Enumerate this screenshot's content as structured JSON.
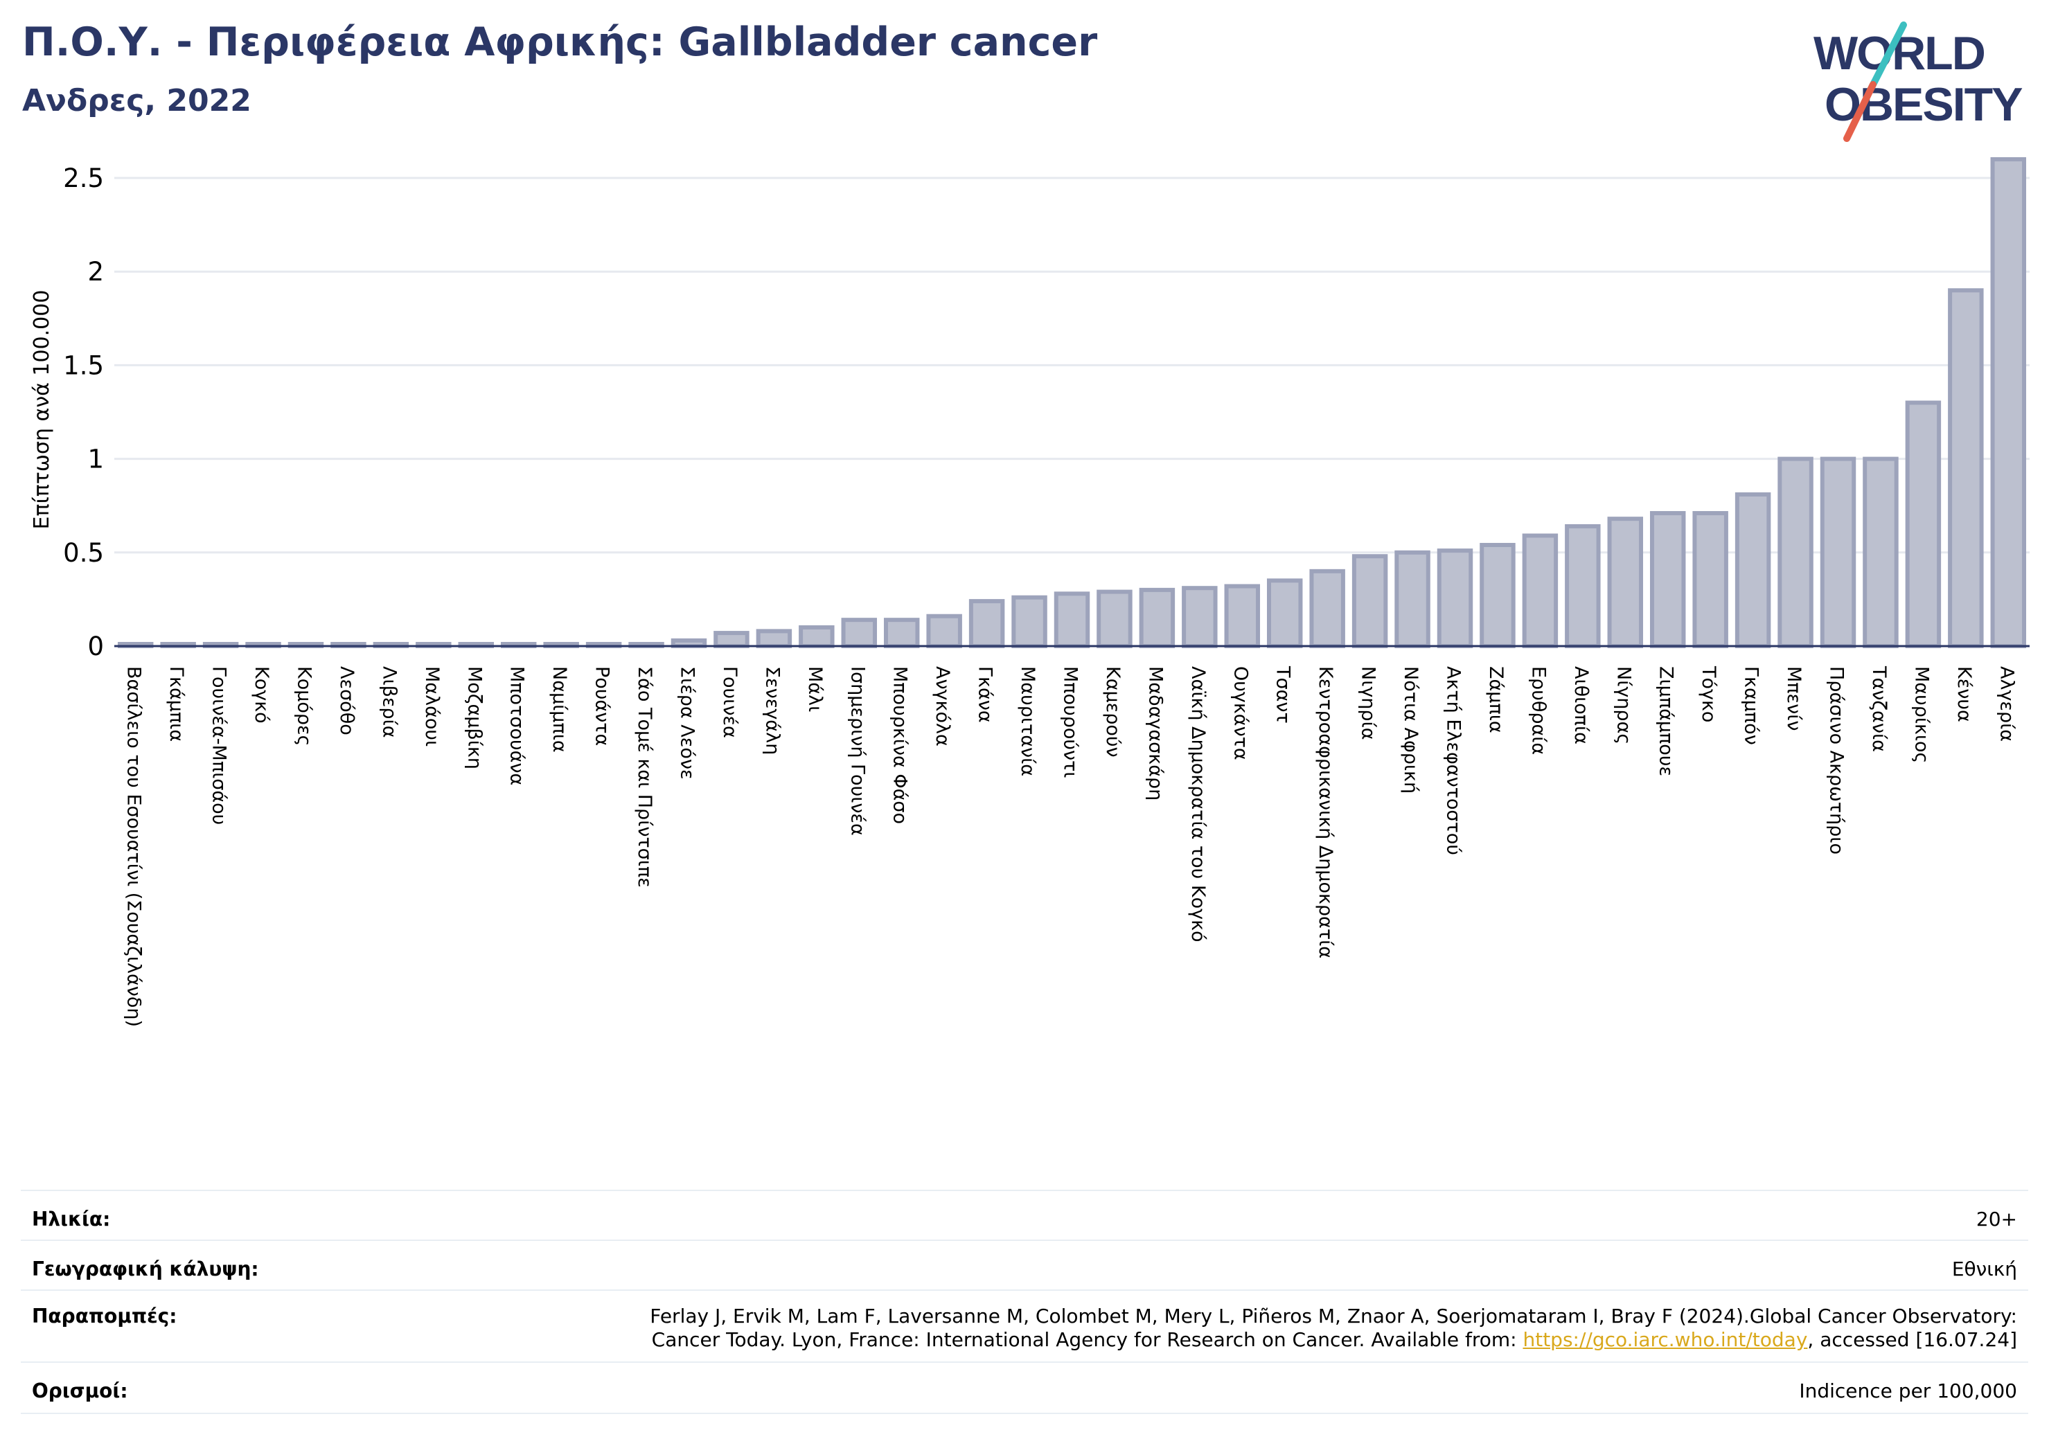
{
  "header": {
    "title": "Π.Ο.Υ. - Περιφέρεια Αφρικής: Gallbladder cancer",
    "subtitle": "Ανδρες, 2022"
  },
  "logo": {
    "line1": "WORLD",
    "line2": "OBESITY",
    "accent_teal": "#3cbfc0",
    "accent_red": "#e5604a",
    "text_color": "#2b3766"
  },
  "colors": {
    "bar_fill": "#bcc0cf",
    "bar_stroke": "#9da3bb",
    "grid": "#e6e9ef",
    "axis": "#2b3766"
  },
  "chart_data": {
    "type": "bar",
    "title": "Π.Ο.Υ. - Περιφέρεια Αφρικής: Gallbladder cancer",
    "ylabel": "Επίπτωση ανά 100.000",
    "xlabel": "",
    "ylim": [
      0,
      2.6
    ],
    "yticks": [
      0,
      0.5,
      1,
      1.5,
      2,
      2.5
    ],
    "ytick_labels": [
      "0",
      "0.5",
      "1",
      "1.5",
      "2",
      "2.5"
    ],
    "grid": true,
    "categories": [
      "Βασίλειο του Εσουατίνι (Σουαζιλάνδη)",
      "Γκάμπια",
      "Γουινέα-Μπισάου",
      "Κογκό",
      "Κομόρες",
      "Λεσόθο",
      "Λιβερία",
      "Μαλάουι",
      "Μοζαμβίκη",
      "Μποτσουάνα",
      "Ναμίμπια",
      "Ρουάντα",
      "Σάο Τομέ και Πρίντσιπε",
      "Σιέρα Λεόνε",
      "Γουινέα",
      "Σενεγάλη",
      "Μάλι",
      "Ισημερινή Γουινέα",
      "Μπουρκίνα Φάσο",
      "Ανγκόλα",
      "Γκάνα",
      "Μαυριτανία",
      "Μπουρούντι",
      "Καμερούν",
      "Μαδαγασκάρη",
      "Λαϊκή Δημοκρατία του Κογκό",
      "Ουγκάντα",
      "Τσαντ",
      "Κεντροαφρικανική Δημοκρατία",
      "Νιγηρία",
      "Νότια Αφρική",
      "Ακτή Ελεφαντοστού",
      "Ζάμπια",
      "Ερυθραία",
      "Αιθιοπία",
      "Νίγηρας",
      "Ζιμπάμπουε",
      "Τόγκο",
      "Γκαμπόν",
      "Μπενίν",
      "Πράσινο Ακρωτήριο",
      "Τανζανία",
      "Μαυρίκιος",
      "Κένυα",
      "Αλγερία"
    ],
    "values": [
      0.01,
      0.01,
      0.01,
      0.01,
      0.01,
      0.01,
      0.01,
      0.01,
      0.01,
      0.01,
      0.01,
      0.01,
      0.01,
      0.03,
      0.07,
      0.08,
      0.1,
      0.14,
      0.14,
      0.16,
      0.24,
      0.26,
      0.28,
      0.29,
      0.3,
      0.31,
      0.32,
      0.35,
      0.4,
      0.48,
      0.5,
      0.51,
      0.54,
      0.59,
      0.64,
      0.68,
      0.71,
      0.71,
      0.81,
      1.0,
      1.0,
      1.0,
      1.3,
      1.9,
      2.6
    ]
  },
  "meta": {
    "age_label": "Ηλικία:",
    "age_value": "20+",
    "coverage_label": "Γεωγραφική κάλυψη:",
    "coverage_value": "Εθνική",
    "refs_label": "Παραπομπές:",
    "refs_line1": "Ferlay J, Ervik M, Lam F, Laversanne M, Colombet M, Mery L, Piñeros M, Znaor A, Soerjomataram I, Bray F (2024).Global Cancer Observatory:",
    "refs_line2_prefix": "Cancer Today. Lyon, France: International Agency for Research on Cancer. Available from: ",
    "refs_link": "https://gco.iarc.who.int/today",
    "refs_line2_suffix": ", accessed [16.07.24]",
    "definitions_label": "Ορισμοί:",
    "definitions_value": "Indicence per 100,000"
  }
}
